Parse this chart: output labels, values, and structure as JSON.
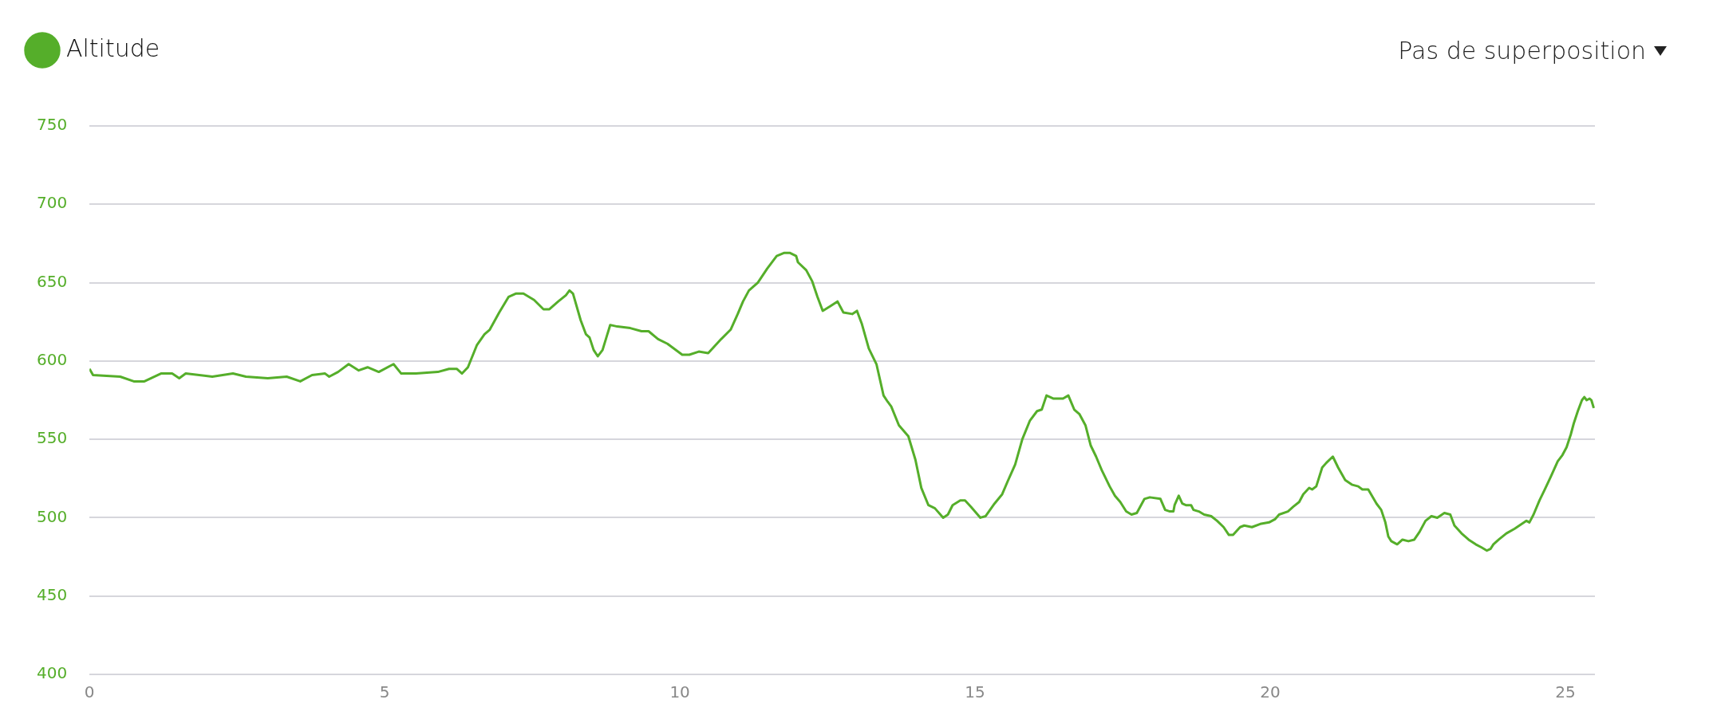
{
  "chart_data": {
    "type": "line",
    "annotations": [
      "Pas de superposition"
    ],
    "x": [
      0,
      0.06,
      0.52,
      0.75,
      0.93,
      1.21,
      1.4,
      1.52,
      1.63,
      2.08,
      2.43,
      2.65,
      3.02,
      3.34,
      3.57,
      3.77,
      3.99,
      4.06,
      4.21,
      4.39,
      4.56,
      4.71,
      4.9,
      5.15,
      5.28,
      5.53,
      5.9,
      6.09,
      6.22,
      6.31,
      6.41,
      6.56,
      6.69,
      6.78,
      6.94,
      7.1,
      7.22,
      7.35,
      7.53,
      7.69,
      7.79,
      7.94,
      8.07,
      8.13,
      8.19,
      8.32,
      8.41,
      8.47,
      8.54,
      8.61,
      8.69,
      8.82,
      8.94,
      9.16,
      9.35,
      9.47,
      9.63,
      9.79,
      10.04,
      10.16,
      10.32,
      10.48,
      10.7,
      10.86,
      10.98,
      11.07,
      11.17,
      11.32,
      11.48,
      11.64,
      11.77,
      11.86,
      11.97,
      12.0,
      12.14,
      12.24,
      12.33,
      12.42,
      12.55,
      12.67,
      12.77,
      12.92,
      13.0,
      13.08,
      13.2,
      13.33,
      13.45,
      13.52,
      13.58,
      13.71,
      13.87,
      13.99,
      14.09,
      14.21,
      14.32,
      14.46,
      14.54,
      14.62,
      14.75,
      14.83,
      14.93,
      15.09,
      15.18,
      15.33,
      15.46,
      15.55,
      15.68,
      15.8,
      15.93,
      16.05,
      16.13,
      16.21,
      16.33,
      16.49,
      16.58,
      16.68,
      16.77,
      16.87,
      16.96,
      17.05,
      17.15,
      17.28,
      17.37,
      17.46,
      17.56,
      17.65,
      17.74,
      17.87,
      17.96,
      18.14,
      18.22,
      18.3,
      18.36,
      18.38,
      18.45,
      18.51,
      18.57,
      18.66,
      18.7,
      18.79,
      18.88,
      19.0,
      19.1,
      19.21,
      19.3,
      19.37,
      19.49,
      19.56,
      19.69,
      19.83,
      19.98,
      20.08,
      20.15,
      20.3,
      20.39,
      20.49,
      20.56,
      20.66,
      20.71,
      20.78,
      20.88,
      20.95,
      21.06,
      21.15,
      21.27,
      21.39,
      21.49,
      21.56,
      21.66,
      21.8,
      21.88,
      21.95,
      22.0,
      22.05,
      22.15,
      22.24,
      22.34,
      22.44,
      22.53,
      22.63,
      22.73,
      22.83,
      22.95,
      23.05,
      23.12,
      23.24,
      23.36,
      23.48,
      23.58,
      23.67,
      23.73,
      23.78,
      23.87,
      24.0,
      24.14,
      24.26,
      24.34,
      24.39,
      24.46,
      24.56,
      24.65,
      24.75,
      24.87,
      24.95,
      25.02,
      25.09,
      25.14,
      25.21,
      25.28,
      25.32,
      25.36,
      25.41,
      25.44,
      25.48
    ],
    "series": [
      {
        "name": "Altitude",
        "color": "#55ae2a",
        "values": [
          595,
          591,
          590,
          587,
          587,
          592,
          592,
          589,
          592,
          590,
          592,
          590,
          589,
          590,
          587,
          591,
          592,
          590,
          593,
          598,
          594,
          596,
          593,
          598,
          592,
          592,
          593,
          595,
          595,
          592,
          596,
          610,
          617,
          620,
          631,
          641,
          643,
          643,
          639,
          633,
          633,
          638,
          642,
          645,
          643,
          626,
          617,
          615,
          607,
          603,
          607,
          623,
          622,
          621,
          619,
          619,
          614,
          611,
          604,
          604,
          606,
          605,
          614,
          620,
          630,
          638,
          645,
          650,
          659,
          667,
          669,
          669,
          667,
          663,
          658,
          651,
          641,
          632,
          635,
          638,
          631,
          630,
          632,
          624,
          608,
          598,
          578,
          574,
          571,
          559,
          552,
          537,
          519,
          508,
          506,
          500,
          502,
          508,
          511,
          511,
          507,
          500,
          501,
          509,
          515,
          523,
          534,
          550,
          562,
          568,
          569,
          578,
          576,
          576,
          578,
          569,
          566,
          559,
          546,
          539,
          530,
          520,
          514,
          510,
          504,
          502,
          503,
          512,
          513,
          512,
          505,
          504,
          504,
          508,
          514,
          509,
          508,
          508,
          505,
          504,
          502,
          501,
          498,
          494,
          489,
          489,
          494,
          495,
          494,
          496,
          497,
          499,
          502,
          504,
          507,
          510,
          515,
          519,
          518,
          520,
          532,
          535,
          539,
          532,
          524,
          521,
          520,
          518,
          518,
          509,
          505,
          497,
          488,
          485,
          483,
          486,
          485,
          486,
          491,
          498,
          501,
          500,
          503,
          502,
          495,
          490,
          486,
          483,
          481,
          479,
          480,
          483,
          486,
          490,
          493,
          496,
          498,
          497,
          502,
          511,
          518,
          526,
          536,
          540,
          545,
          553,
          560,
          568,
          575,
          577,
          575,
          576,
          575,
          570
        ]
      }
    ],
    "xlim": [
      0,
      25.5
    ],
    "xticks": [
      0,
      5,
      10,
      15,
      20,
      25
    ],
    "ylim": [
      400,
      750
    ],
    "yticks": [
      400,
      450,
      500,
      550,
      600,
      650,
      700,
      750
    ],
    "grid": "y",
    "legend": "top left",
    "marker": "none",
    "line_style": "solid"
  }
}
